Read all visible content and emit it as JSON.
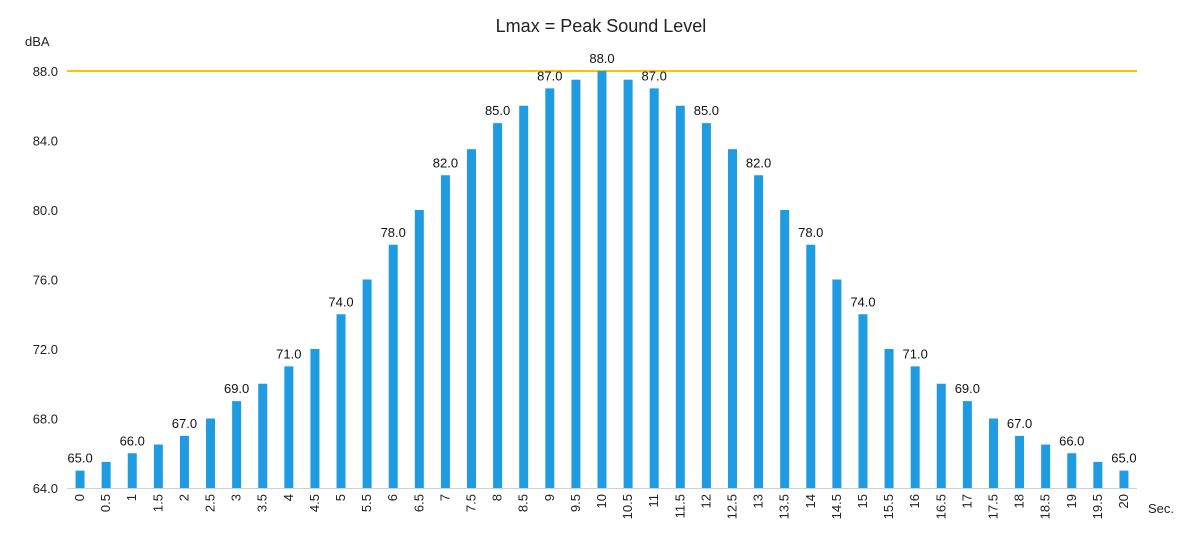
{
  "chart_data": {
    "type": "bar",
    "title": "Lmax = Peak Sound Level",
    "ylabel": "dBA",
    "xlabel": "Sec.",
    "ylim": [
      64,
      88
    ],
    "yticks": [
      "64.0",
      "68.0",
      "72.0",
      "76.0",
      "80.0",
      "84.0",
      "88.0"
    ],
    "categories": [
      "0",
      "0.5",
      "1",
      "1.5",
      "2",
      "2.5",
      "3",
      "3.5",
      "4",
      "4.5",
      "5",
      "5.5",
      "6",
      "6.5",
      "7",
      "7.5",
      "8",
      "8.5",
      "9",
      "9.5",
      "10",
      "10.5",
      "11",
      "11.5",
      "12",
      "12.5",
      "13",
      "13.5",
      "14",
      "14.5",
      "15",
      "15.5",
      "16",
      "16.5",
      "17",
      "17.5",
      "18",
      "18.5",
      "19",
      "19.5",
      "20"
    ],
    "values": [
      65,
      65.5,
      66,
      66.5,
      67,
      68,
      69,
      70,
      71,
      72,
      74,
      76,
      78,
      80,
      82,
      83.5,
      85,
      86,
      87,
      87.5,
      88,
      87.5,
      87,
      86,
      85,
      83.5,
      82,
      80,
      78,
      76,
      74,
      72,
      71,
      70,
      69,
      68,
      67,
      66.5,
      66,
      65.5,
      65
    ],
    "data_labels": [
      "65.0",
      "",
      "66.0",
      "",
      "67.0",
      "",
      "69.0",
      "",
      "71.0",
      "",
      "74.0",
      "",
      "78.0",
      "",
      "82.0",
      "",
      "85.0",
      "",
      "87.0",
      "",
      "88.0",
      "",
      "87.0",
      "",
      "85.0",
      "",
      "82.0",
      "",
      "78.0",
      "",
      "74.0",
      "",
      "71.0",
      "",
      "69.0",
      "",
      "67.0",
      "",
      "66.0",
      "",
      "65.0"
    ],
    "reference_line": {
      "value": 88,
      "color": "#FFC000"
    },
    "bar_color": "#1F9BE2",
    "grid": false,
    "legend": "none"
  }
}
